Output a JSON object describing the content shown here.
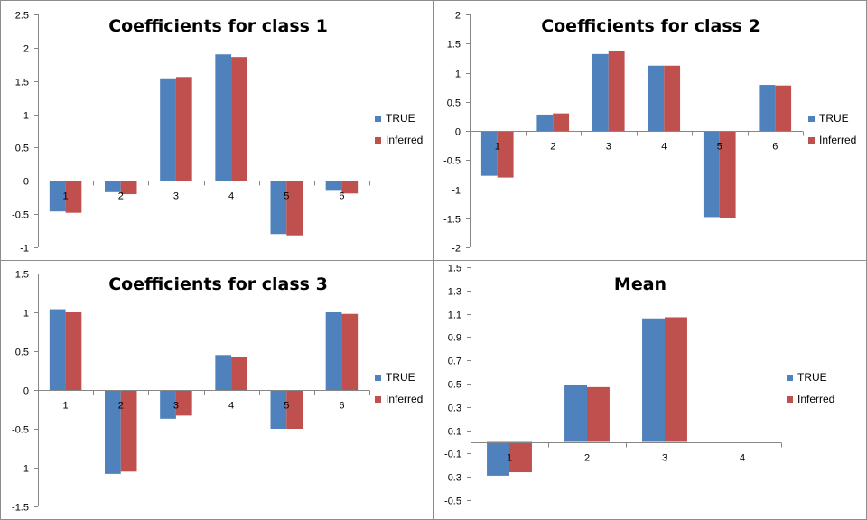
{
  "colors": {
    "true_series": "#4f81bd",
    "inferred_series": "#c0504d"
  },
  "chart_data": [
    {
      "type": "bar",
      "title": "Coefficients for class 1",
      "categories": [
        "1",
        "2",
        "3",
        "4",
        "5",
        "6"
      ],
      "series": [
        {
          "name": "TRUE",
          "values": [
            -0.46,
            -0.17,
            1.54,
            1.9,
            -0.8,
            -0.15
          ]
        },
        {
          "name": "Inferred",
          "values": [
            -0.48,
            -0.2,
            1.56,
            1.86,
            -0.82,
            -0.19
          ]
        }
      ],
      "ylim": [
        -1,
        2.5
      ],
      "yticks": [
        "2.5",
        "2",
        "1.5",
        "1",
        "0.5",
        "0",
        "-0.5",
        "-1"
      ],
      "ytick_values": [
        2.5,
        2,
        1.5,
        1,
        0.5,
        0,
        -0.5,
        -1
      ],
      "grid": false,
      "legend": "right"
    },
    {
      "type": "bar",
      "title": "Coefficients for class 2",
      "categories": [
        "1",
        "2",
        "3",
        "4",
        "5",
        "6"
      ],
      "series": [
        {
          "name": "TRUE",
          "values": [
            -0.77,
            0.28,
            1.32,
            1.12,
            -1.48,
            0.79
          ]
        },
        {
          "name": "Inferred",
          "values": [
            -0.8,
            0.3,
            1.37,
            1.12,
            -1.5,
            0.78
          ]
        }
      ],
      "ylim": [
        -2,
        2
      ],
      "yticks": [
        "2",
        "1.5",
        "1",
        "0.5",
        "0",
        "-0.5",
        "-1",
        "-1.5",
        "-2"
      ],
      "ytick_values": [
        2,
        1.5,
        1,
        0.5,
        0,
        -0.5,
        -1,
        -1.5,
        -2
      ],
      "grid": false,
      "legend": "right"
    },
    {
      "type": "bar",
      "title": "Coefficients for class 3",
      "categories": [
        "1",
        "2",
        "3",
        "4",
        "5",
        "6"
      ],
      "series": [
        {
          "name": "TRUE",
          "values": [
            1.04,
            -1.08,
            -0.37,
            0.45,
            -0.5,
            1.0
          ]
        },
        {
          "name": "Inferred",
          "values": [
            1.0,
            -1.05,
            -0.33,
            0.43,
            -0.5,
            0.98
          ]
        }
      ],
      "ylim": [
        -1.5,
        1.5
      ],
      "yticks": [
        "1.5",
        "1",
        "0.5",
        "0",
        "-0.5",
        "-1",
        "-1.5"
      ],
      "ytick_values": [
        1.5,
        1,
        0.5,
        0,
        -0.5,
        -1,
        -1.5
      ],
      "grid": false,
      "legend": "right"
    },
    {
      "type": "bar",
      "title": "Mean",
      "categories": [
        "1",
        "2",
        "3",
        "4"
      ],
      "series": [
        {
          "name": "TRUE",
          "values": [
            -0.29,
            0.49,
            1.06,
            0
          ]
        },
        {
          "name": "Inferred",
          "values": [
            -0.26,
            0.47,
            1.07,
            0
          ]
        }
      ],
      "ylim": [
        -0.5,
        1.5
      ],
      "yticks": [
        "1.5",
        "1.3",
        "1.1",
        "0.9",
        "0.7",
        "0.5",
        "0.3",
        "0.1",
        "-0.1",
        "-0.3",
        "-0.5"
      ],
      "ytick_values": [
        1.5,
        1.3,
        1.1,
        0.9,
        0.7,
        0.5,
        0.3,
        0.1,
        -0.1,
        -0.3,
        -0.5
      ],
      "grid": false,
      "legend": "right"
    }
  ]
}
